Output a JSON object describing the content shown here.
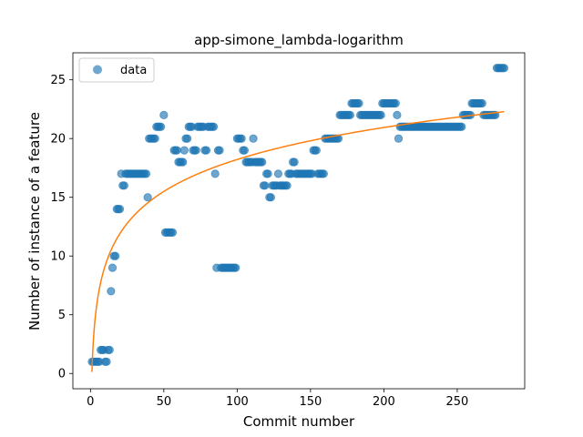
{
  "chart_data": {
    "type": "scatter",
    "title": "app-simone_lambda-logarithm",
    "xlabel": "Commit number",
    "ylabel": "Number of instance of a feature",
    "xlim": [
      -12,
      296
    ],
    "ylim": [
      -1.3,
      27.3
    ],
    "xticks": [
      0,
      50,
      100,
      150,
      200,
      250
    ],
    "yticks": [
      0,
      5,
      10,
      15,
      20,
      25
    ],
    "grid": false,
    "legend": {
      "position": "top-left",
      "entries": [
        "data"
      ]
    },
    "colors": {
      "points": "#1f77b4",
      "fit": "#ff7f0e"
    },
    "series": [
      {
        "name": "data",
        "kind": "scatter",
        "points": [
          [
            1,
            1
          ],
          [
            2,
            1
          ],
          [
            3,
            1
          ],
          [
            4,
            1
          ],
          [
            5,
            1
          ],
          [
            6,
            1
          ],
          [
            7,
            2
          ],
          [
            8,
            2
          ],
          [
            9,
            2
          ],
          [
            10,
            1
          ],
          [
            11,
            1
          ],
          [
            12,
            2
          ],
          [
            13,
            2
          ],
          [
            14,
            7
          ],
          [
            15,
            9
          ],
          [
            16,
            10
          ],
          [
            17,
            10
          ],
          [
            18,
            14
          ],
          [
            19,
            14
          ],
          [
            20,
            14
          ],
          [
            21,
            17
          ],
          [
            22,
            16
          ],
          [
            23,
            16
          ],
          [
            24,
            17
          ],
          [
            25,
            17
          ],
          [
            26,
            17
          ],
          [
            27,
            17
          ],
          [
            28,
            17
          ],
          [
            29,
            17
          ],
          [
            30,
            17
          ],
          [
            31,
            17
          ],
          [
            32,
            17
          ],
          [
            33,
            17
          ],
          [
            34,
            17
          ],
          [
            35,
            17
          ],
          [
            36,
            17
          ],
          [
            37,
            17
          ],
          [
            38,
            17
          ],
          [
            39,
            15
          ],
          [
            40,
            20
          ],
          [
            41,
            20
          ],
          [
            42,
            20
          ],
          [
            43,
            20
          ],
          [
            44,
            20
          ],
          [
            45,
            21
          ],
          [
            46,
            21
          ],
          [
            47,
            21
          ],
          [
            48,
            21
          ],
          [
            50,
            22
          ],
          [
            51,
            12
          ],
          [
            52,
            12
          ],
          [
            53,
            12
          ],
          [
            54,
            12
          ],
          [
            55,
            12
          ],
          [
            56,
            12
          ],
          [
            57,
            19
          ],
          [
            58,
            19
          ],
          [
            59,
            19
          ],
          [
            60,
            18
          ],
          [
            61,
            18
          ],
          [
            62,
            18
          ],
          [
            63,
            18
          ],
          [
            64,
            19
          ],
          [
            65,
            20
          ],
          [
            66,
            20
          ],
          [
            67,
            21
          ],
          [
            68,
            21
          ],
          [
            69,
            21
          ],
          [
            70,
            19
          ],
          [
            71,
            19
          ],
          [
            72,
            19
          ],
          [
            73,
            21
          ],
          [
            74,
            21
          ],
          [
            75,
            21
          ],
          [
            76,
            21
          ],
          [
            77,
            21
          ],
          [
            78,
            19
          ],
          [
            79,
            19
          ],
          [
            80,
            21
          ],
          [
            81,
            21
          ],
          [
            82,
            21
          ],
          [
            83,
            21
          ],
          [
            84,
            21
          ],
          [
            85,
            17
          ],
          [
            86,
            9
          ],
          [
            87,
            19
          ],
          [
            88,
            19
          ],
          [
            89,
            9
          ],
          [
            90,
            9
          ],
          [
            91,
            9
          ],
          [
            92,
            9
          ],
          [
            93,
            9
          ],
          [
            94,
            9
          ],
          [
            95,
            9
          ],
          [
            96,
            9
          ],
          [
            97,
            9
          ],
          [
            98,
            9
          ],
          [
            99,
            9
          ],
          [
            100,
            20
          ],
          [
            101,
            20
          ],
          [
            102,
            20
          ],
          [
            103,
            20
          ],
          [
            104,
            19
          ],
          [
            105,
            19
          ],
          [
            106,
            18
          ],
          [
            107,
            18
          ],
          [
            108,
            18
          ],
          [
            109,
            18
          ],
          [
            110,
            18
          ],
          [
            111,
            20
          ],
          [
            112,
            18
          ],
          [
            113,
            18
          ],
          [
            114,
            18
          ],
          [
            115,
            18
          ],
          [
            116,
            18
          ],
          [
            117,
            18
          ],
          [
            118,
            16
          ],
          [
            119,
            16
          ],
          [
            120,
            17
          ],
          [
            121,
            17
          ],
          [
            122,
            15
          ],
          [
            123,
            15
          ],
          [
            124,
            16
          ],
          [
            125,
            16
          ],
          [
            126,
            16
          ],
          [
            127,
            16
          ],
          [
            128,
            17
          ],
          [
            129,
            16
          ],
          [
            130,
            16
          ],
          [
            131,
            16
          ],
          [
            132,
            16
          ],
          [
            133,
            16
          ],
          [
            134,
            16
          ],
          [
            135,
            17
          ],
          [
            136,
            17
          ],
          [
            137,
            17
          ],
          [
            138,
            18
          ],
          [
            139,
            18
          ],
          [
            140,
            17
          ],
          [
            141,
            17
          ],
          [
            142,
            17
          ],
          [
            143,
            17
          ],
          [
            144,
            17
          ],
          [
            145,
            17
          ],
          [
            146,
            17
          ],
          [
            147,
            17
          ],
          [
            148,
            17
          ],
          [
            149,
            17
          ],
          [
            150,
            17
          ],
          [
            151,
            17
          ],
          [
            152,
            19
          ],
          [
            153,
            19
          ],
          [
            154,
            19
          ],
          [
            155,
            17
          ],
          [
            156,
            17
          ],
          [
            157,
            17
          ],
          [
            158,
            17
          ],
          [
            159,
            17
          ],
          [
            160,
            20
          ],
          [
            161,
            20
          ],
          [
            162,
            20
          ],
          [
            163,
            20
          ],
          [
            164,
            20
          ],
          [
            165,
            20
          ],
          [
            166,
            20
          ],
          [
            167,
            20
          ],
          [
            168,
            20
          ],
          [
            169,
            20
          ],
          [
            170,
            22
          ],
          [
            171,
            22
          ],
          [
            172,
            22
          ],
          [
            173,
            22
          ],
          [
            174,
            22
          ],
          [
            175,
            22
          ],
          [
            176,
            22
          ],
          [
            177,
            22
          ],
          [
            178,
            23
          ],
          [
            179,
            23
          ],
          [
            180,
            23
          ],
          [
            181,
            23
          ],
          [
            182,
            23
          ],
          [
            183,
            23
          ],
          [
            184,
            22
          ],
          [
            185,
            22
          ],
          [
            186,
            22
          ],
          [
            187,
            22
          ],
          [
            188,
            22
          ],
          [
            189,
            22
          ],
          [
            190,
            22
          ],
          [
            191,
            22
          ],
          [
            192,
            22
          ],
          [
            193,
            22
          ],
          [
            194,
            22
          ],
          [
            195,
            22
          ],
          [
            196,
            22
          ],
          [
            197,
            22
          ],
          [
            198,
            22
          ],
          [
            199,
            23
          ],
          [
            200,
            23
          ],
          [
            201,
            23
          ],
          [
            202,
            23
          ],
          [
            203,
            23
          ],
          [
            204,
            23
          ],
          [
            205,
            23
          ],
          [
            206,
            23
          ],
          [
            207,
            23
          ],
          [
            208,
            23
          ],
          [
            209,
            22
          ],
          [
            210,
            20
          ],
          [
            211,
            21
          ],
          [
            212,
            21
          ],
          [
            213,
            21
          ],
          [
            214,
            21
          ],
          [
            215,
            21
          ],
          [
            216,
            21
          ],
          [
            217,
            21
          ],
          [
            218,
            21
          ],
          [
            219,
            21
          ],
          [
            220,
            21
          ],
          [
            221,
            21
          ],
          [
            222,
            21
          ],
          [
            223,
            21
          ],
          [
            224,
            21
          ],
          [
            225,
            21
          ],
          [
            226,
            21
          ],
          [
            227,
            21
          ],
          [
            228,
            21
          ],
          [
            229,
            21
          ],
          [
            230,
            21
          ],
          [
            231,
            21
          ],
          [
            232,
            21
          ],
          [
            233,
            21
          ],
          [
            234,
            21
          ],
          [
            235,
            21
          ],
          [
            236,
            21
          ],
          [
            237,
            21
          ],
          [
            238,
            21
          ],
          [
            239,
            21
          ],
          [
            240,
            21
          ],
          [
            241,
            21
          ],
          [
            242,
            21
          ],
          [
            243,
            21
          ],
          [
            244,
            21
          ],
          [
            245,
            21
          ],
          [
            246,
            21
          ],
          [
            247,
            21
          ],
          [
            248,
            21
          ],
          [
            249,
            21
          ],
          [
            250,
            21
          ],
          [
            251,
            21
          ],
          [
            252,
            21
          ],
          [
            253,
            21
          ],
          [
            254,
            22
          ],
          [
            255,
            22
          ],
          [
            256,
            22
          ],
          [
            257,
            22
          ],
          [
            258,
            22
          ],
          [
            259,
            22
          ],
          [
            260,
            23
          ],
          [
            261,
            23
          ],
          [
            262,
            23
          ],
          [
            263,
            23
          ],
          [
            264,
            23
          ],
          [
            265,
            23
          ],
          [
            266,
            23
          ],
          [
            267,
            23
          ],
          [
            268,
            22
          ],
          [
            269,
            22
          ],
          [
            270,
            22
          ],
          [
            271,
            22
          ],
          [
            272,
            22
          ],
          [
            273,
            22
          ],
          [
            274,
            22
          ],
          [
            275,
            22
          ],
          [
            276,
            22
          ],
          [
            277,
            26
          ],
          [
            278,
            26
          ],
          [
            279,
            26
          ],
          [
            280,
            26
          ],
          [
            281,
            26
          ],
          [
            282,
            26
          ]
        ]
      },
      {
        "kind": "fit-line",
        "model": "logarithmic",
        "y_at_x": {
          "1": 0,
          "20": 12,
          "50": 15.8,
          "100": 18.2,
          "150": 19.8,
          "200": 20.9,
          "250": 21.7,
          "282": 22.2
        }
      }
    ]
  }
}
